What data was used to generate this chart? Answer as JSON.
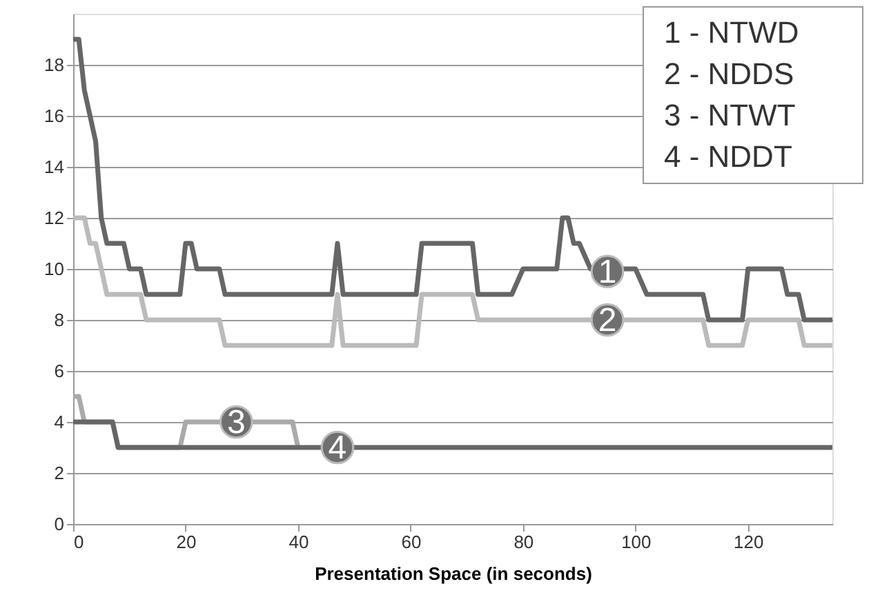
{
  "chart_data": {
    "type": "line",
    "xlabel": "Presentation Space (in seconds)",
    "xlim": [
      0,
      135
    ],
    "xticks": [
      0,
      20,
      40,
      60,
      80,
      100,
      120
    ],
    "ylim": [
      0,
      20
    ],
    "yticks": [
      0,
      2,
      4,
      6,
      8,
      10,
      12,
      14,
      16,
      18
    ],
    "grid": "y",
    "marker": "none",
    "line_style": "solid",
    "series": [
      {
        "color": "#666666",
        "x": [
          0,
          1,
          2,
          3,
          4,
          5,
          6,
          9,
          10,
          12,
          13,
          19,
          20,
          21,
          22,
          26,
          27,
          46,
          47,
          48,
          61,
          62,
          71,
          72,
          78,
          80,
          86,
          87,
          88,
          89,
          90,
          92,
          100,
          102,
          112,
          113,
          119,
          120,
          126,
          127,
          129,
          130,
          135
        ],
        "values": [
          19,
          19,
          17,
          16,
          15,
          12,
          11,
          11,
          10,
          10,
          9,
          9,
          11,
          11,
          10,
          10,
          9,
          9,
          11,
          9,
          9,
          11,
          11,
          9,
          9,
          10,
          10,
          12,
          12,
          11,
          11,
          10,
          10,
          9,
          9,
          8,
          8,
          10,
          10,
          9,
          9,
          8,
          8
        ]
      },
      {
        "color": "#bbbbbb",
        "x": [
          0,
          2,
          3,
          4,
          6,
          12,
          13,
          26,
          27,
          46,
          47,
          48,
          61,
          62,
          71,
          72,
          112,
          113,
          119,
          120,
          129,
          130,
          135
        ],
        "values": [
          12,
          12,
          11,
          11,
          9,
          9,
          8,
          8,
          7,
          7,
          9,
          7,
          7,
          9,
          9,
          8,
          8,
          7,
          7,
          8,
          8,
          7,
          7
        ]
      },
      {
        "color": "#aaaaaa",
        "x": [
          0,
          1,
          2,
          7,
          8,
          19,
          20,
          39,
          40
        ],
        "values": [
          5,
          5,
          4,
          4,
          3,
          3,
          4,
          4,
          3
        ]
      },
      {
        "color": "#666666",
        "x": [
          0,
          7,
          8,
          135
        ],
        "values": [
          4,
          4,
          3,
          3
        ]
      }
    ],
    "annotations": [
      "1 - NTWD",
      "2 - NDDS",
      "3 - NTWT",
      "4 - NDDT",
      {
        "text": "1",
        "x": 95,
        "y": 9.9
      },
      {
        "text": "2",
        "x": 95,
        "y": 8
      },
      {
        "text": "3",
        "x": 29,
        "y": 4
      },
      {
        "text": "4",
        "x": 47,
        "y": 3
      }
    ]
  }
}
